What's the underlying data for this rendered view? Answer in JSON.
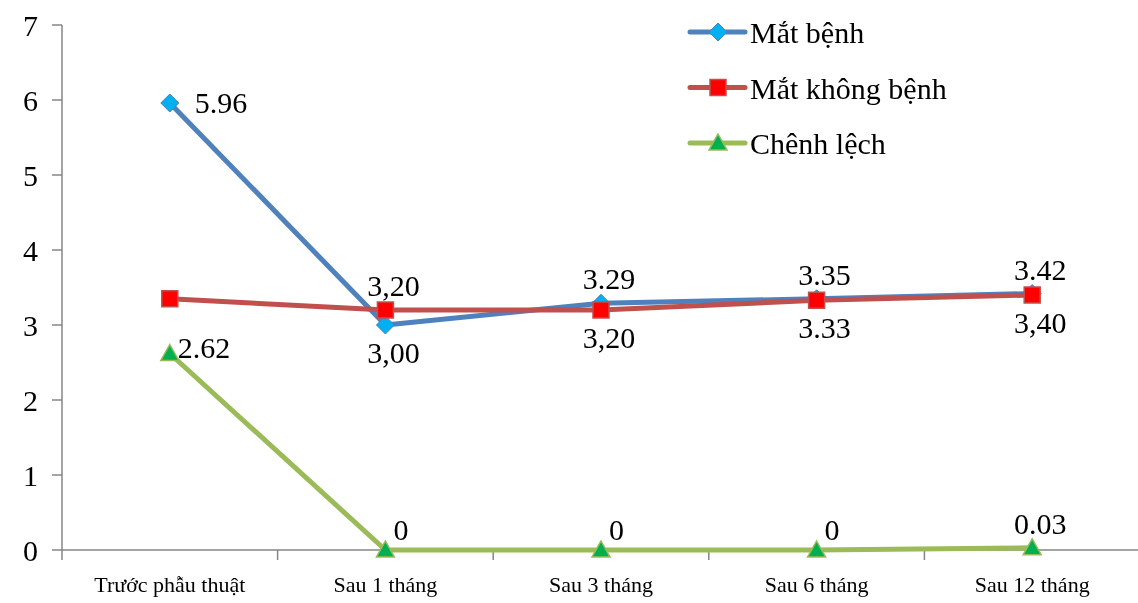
{
  "chart_data": {
    "type": "line",
    "categories": [
      "Trước phẫu thuật",
      "Sau 1 tháng",
      "Sau 3 tháng",
      "Sau 6 tháng",
      "Sau 12 tháng"
    ],
    "ylim": [
      0,
      7
    ],
    "yticks": [
      0,
      1,
      2,
      3,
      4,
      5,
      6,
      7
    ],
    "legend": "top right",
    "line_style": "solid",
    "series": [
      {
        "name": "Mắt bệnh",
        "color": "#4f81bd",
        "marker": "diamond",
        "values": [
          5.96,
          3.0,
          3.29,
          3.35,
          3.42
        ],
        "value_labels": [
          "5.96",
          "3,00",
          "3.29",
          "3.35",
          "3.42"
        ]
      },
      {
        "name": "Mắt không bệnh",
        "color": "#c0504d",
        "marker": "square",
        "values": [
          3.35,
          3.2,
          3.2,
          3.33,
          3.4
        ],
        "value_labels": [
          null,
          "3,20",
          "3,20",
          "3.33",
          "3,40"
        ]
      },
      {
        "name": "Chênh lệch",
        "color": "#9bbb59",
        "marker": "triangle",
        "values": [
          2.62,
          0,
          0,
          0,
          0.03
        ],
        "value_labels": [
          "2.62",
          "0",
          "0",
          "0",
          "0.03"
        ]
      }
    ]
  }
}
